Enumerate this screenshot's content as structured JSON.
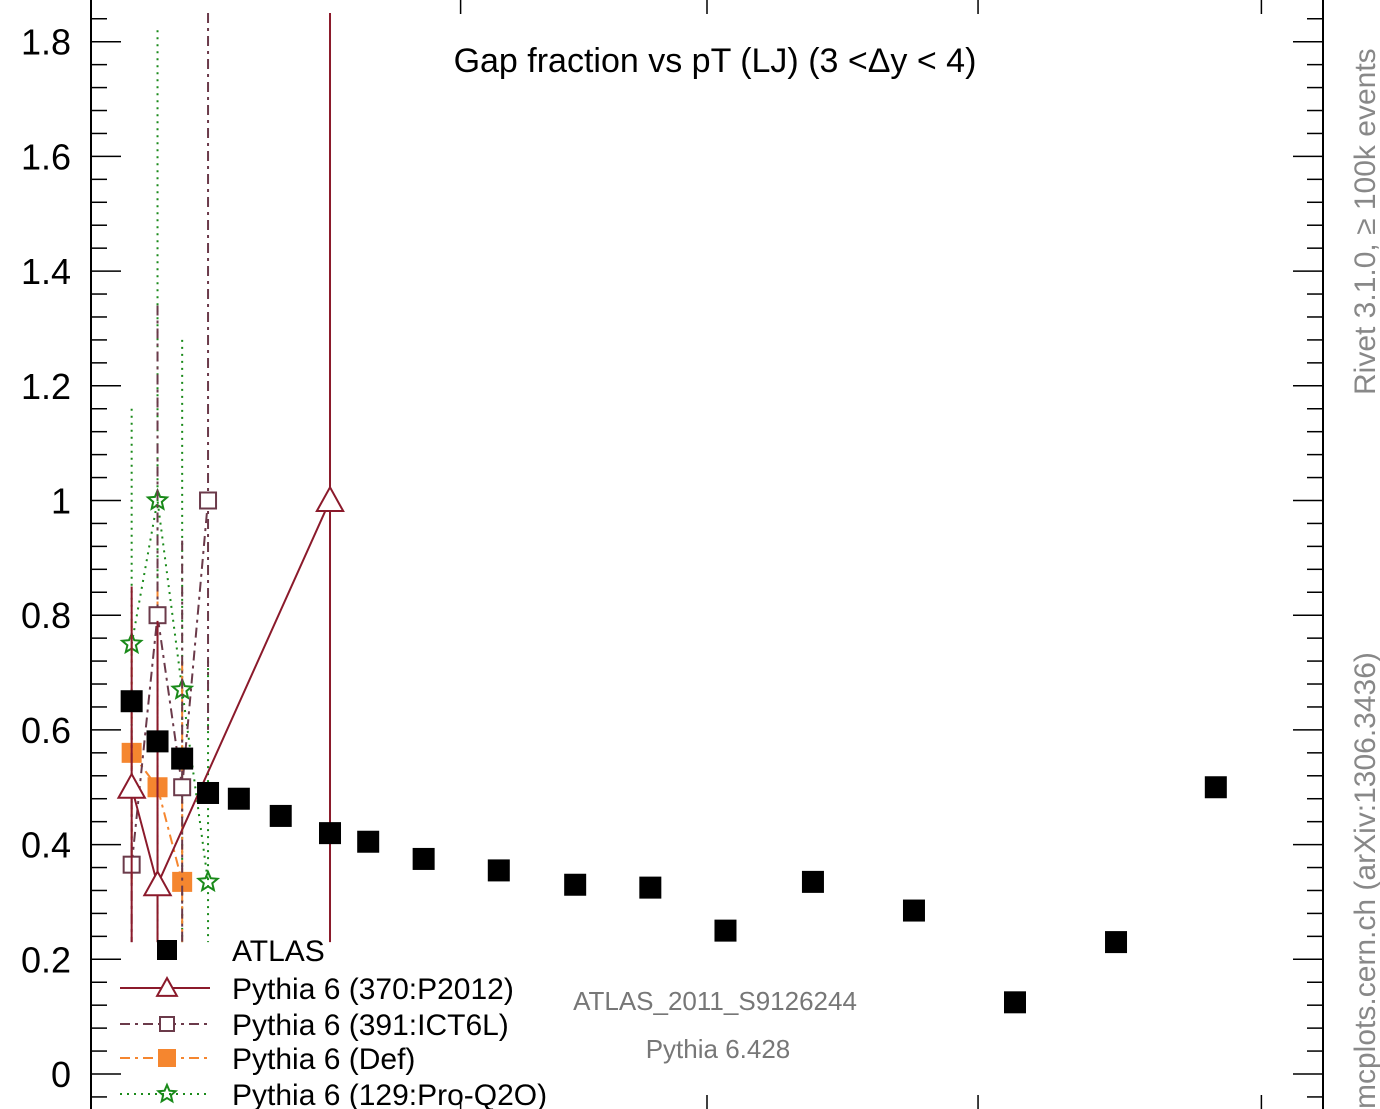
{
  "chart_data": {
    "type": "scatter",
    "title": "Gap fraction vs pT (LJ) (3 <Δy < 4)",
    "xlabel": "",
    "ylabel": "",
    "ylim": [
      -0.1,
      1.85
    ],
    "xlim": [
      0,
      1
    ],
    "y_ticks": [
      {
        "value": 1.8,
        "label": "1.8"
      },
      {
        "value": 1.6,
        "label": "1.6"
      },
      {
        "value": 1.4,
        "label": "1.4"
      },
      {
        "value": 1.2,
        "label": "1.2"
      },
      {
        "value": 1.0,
        "label": "1"
      },
      {
        "value": 0.8,
        "label": "0.8"
      },
      {
        "value": 0.6,
        "label": "0.6"
      },
      {
        "value": 0.4,
        "label": "0.4"
      },
      {
        "value": 0.2,
        "label": "0.2"
      },
      {
        "value": 0.0,
        "label": "0"
      }
    ],
    "x_major_ticks": [
      0.3,
      0.5,
      0.72,
      0.95
    ],
    "series": [
      {
        "name": "ATLAS",
        "color": "#000000",
        "marker": "filled-square",
        "points": [
          {
            "x": 0.033,
            "y": 0.65
          },
          {
            "x": 0.054,
            "y": 0.58
          },
          {
            "x": 0.074,
            "y": 0.55
          },
          {
            "x": 0.095,
            "y": 0.49
          },
          {
            "x": 0.12,
            "y": 0.48
          },
          {
            "x": 0.154,
            "y": 0.45
          },
          {
            "x": 0.194,
            "y": 0.42
          },
          {
            "x": 0.225,
            "y": 0.405
          },
          {
            "x": 0.27,
            "y": 0.375
          },
          {
            "x": 0.331,
            "y": 0.355
          },
          {
            "x": 0.393,
            "y": 0.33
          },
          {
            "x": 0.454,
            "y": 0.325
          },
          {
            "x": 0.515,
            "y": 0.25
          },
          {
            "x": 0.586,
            "y": 0.335
          },
          {
            "x": 0.668,
            "y": 0.285
          },
          {
            "x": 0.75,
            "y": 0.125
          },
          {
            "x": 0.832,
            "y": 0.23
          },
          {
            "x": 0.913,
            "y": 0.5
          }
        ]
      },
      {
        "name": "Pythia 6 (370:P2012)",
        "color": "#8b1a2b",
        "marker": "open-triangle",
        "dash": "",
        "points": [
          {
            "x": 0.033,
            "y": 0.5,
            "lo": 0.23,
            "hi": 0.85
          },
          {
            "x": 0.054,
            "y": 0.33,
            "lo": 0.23,
            "hi": 0.79
          },
          {
            "x": 0.194,
            "y": 1.0,
            "lo": 0.23,
            "hi": 1.85
          }
        ]
      },
      {
        "name": "Pythia 6 (391:ICT6L)",
        "color": "#6b3a4a",
        "marker": "open-square",
        "dash": "10,5,3,5",
        "points": [
          {
            "x": 0.033,
            "y": 0.365,
            "lo": 0.23,
            "hi": 0.6
          },
          {
            "x": 0.054,
            "y": 0.8,
            "lo": 0.26,
            "hi": 1.34
          },
          {
            "x": 0.074,
            "y": 0.5,
            "lo": 0.23,
            "hi": 0.93
          },
          {
            "x": 0.095,
            "y": 1.0,
            "lo": 0.6,
            "hi": 1.85
          }
        ]
      },
      {
        "name": "Pythia 6 (Def)",
        "color": "#f5862f",
        "marker": "filled-square",
        "dash": "10,5,3,5",
        "points": [
          {
            "x": 0.033,
            "y": 0.56,
            "lo": 0.33,
            "hi": 0.79
          },
          {
            "x": 0.054,
            "y": 0.5,
            "lo": 0.23,
            "hi": 0.85
          },
          {
            "x": 0.074,
            "y": 0.335,
            "lo": 0.23,
            "hi": 0.72
          }
        ]
      },
      {
        "name": "Pythia 6 (129:Pro-Q2O)",
        "color": "#1a8a1a",
        "marker": "open-star",
        "dash": "2,5",
        "points": [
          {
            "x": 0.033,
            "y": 0.75,
            "lo": 0.34,
            "hi": 1.16
          },
          {
            "x": 0.054,
            "y": 1.0,
            "lo": 0.23,
            "hi": 1.82
          },
          {
            "x": 0.074,
            "y": 0.67,
            "lo": 0.23,
            "hi": 1.28
          },
          {
            "x": 0.095,
            "y": 0.335,
            "lo": 0.23,
            "hi": 0.72
          }
        ]
      }
    ],
    "legend": {
      "placement": "bottom-left",
      "entries": [
        {
          "label": "ATLAS",
          "series": 0
        },
        {
          "label": "Pythia 6 (370:P2012)",
          "series": 1
        },
        {
          "label": "Pythia 6 (391:ICT6L)",
          "series": 2
        },
        {
          "label": "Pythia 6 (Def)",
          "series": 3
        },
        {
          "label": "Pythia 6 (129:Pro-Q2O)",
          "series": 4
        }
      ]
    },
    "watermark": {
      "analysis": "ATLAS_2011_S9126244",
      "generator": "Pythia 6.428"
    },
    "side_labels": {
      "rivet": "Rivet 3.1.0, ≥ 100k events",
      "mcplots": "mcplots.cern.ch (arXiv:1306.3436)"
    }
  }
}
